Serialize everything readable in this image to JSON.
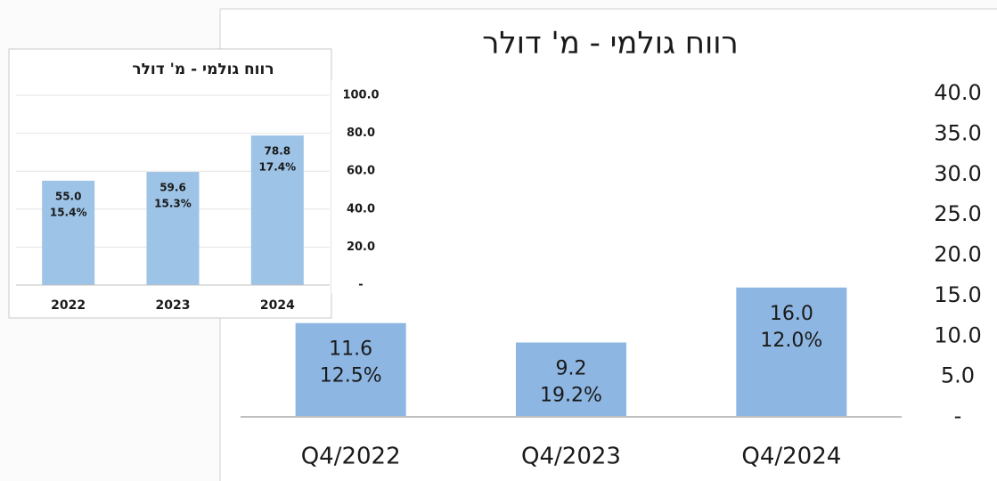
{
  "chart_data": [
    {
      "type": "bar",
      "title": "רווח גולמי - מ' דולר",
      "categories": [
        "Q4/2022",
        "Q4/2023",
        "Q4/2024"
      ],
      "values": [
        11.6,
        9.2,
        16.0
      ],
      "value_labels": [
        "11.6",
        "9.2",
        "16.0"
      ],
      "annotations": [
        "12.5%",
        "19.2%",
        "12.0%"
      ],
      "color": "#8db6e2",
      "grid": false,
      "ylim": [
        0,
        40
      ],
      "yticks": [
        {
          "value": 0,
          "label": "-"
        },
        {
          "value": 5,
          "label": "5.0"
        },
        {
          "value": 10,
          "label": "10.0"
        },
        {
          "value": 15,
          "label": "15.0"
        },
        {
          "value": 20,
          "label": "20.0"
        },
        {
          "value": 25,
          "label": "25.0"
        },
        {
          "value": 30,
          "label": "30.0"
        },
        {
          "value": 35,
          "label": "35.0"
        },
        {
          "value": 40,
          "label": "40.0"
        }
      ]
    },
    {
      "type": "bar",
      "title": "רווח גולמי - מ' דולר",
      "categories": [
        "2022",
        "2023",
        "2024"
      ],
      "values": [
        55.0,
        59.6,
        78.8
      ],
      "value_labels": [
        "55.0",
        "59.6",
        "78.8"
      ],
      "annotations": [
        "15.4%",
        "15.3%",
        "17.4%"
      ],
      "color": "#9dc3e6",
      "grid": true,
      "ylim": [
        0,
        100
      ],
      "yticks": [
        {
          "value": 0,
          "label": "-"
        },
        {
          "value": 20,
          "label": "20.0"
        },
        {
          "value": 40,
          "label": "40.0"
        },
        {
          "value": 60,
          "label": "60.0"
        },
        {
          "value": 80,
          "label": "80.0"
        },
        {
          "value": 100,
          "label": "100.0"
        }
      ]
    }
  ]
}
